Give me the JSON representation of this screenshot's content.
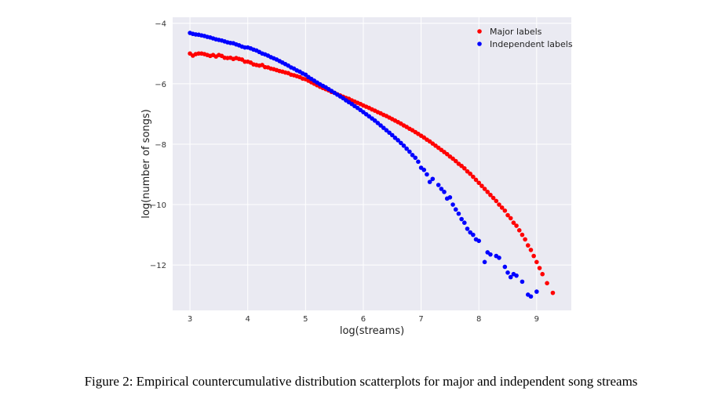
{
  "caption": "Figure 2: Empirical countercumulative distribution scatterplots for major and independent song streams",
  "chart_data": {
    "type": "scatter",
    "xlabel": "log(streams)",
    "ylabel": "log(number of songs)",
    "xlim": [
      2.7,
      9.6
    ],
    "ylim": [
      -13.5,
      -3.8
    ],
    "xticks": [
      3,
      4,
      5,
      6,
      7,
      8,
      9
    ],
    "yticks": [
      -4,
      -6,
      -8,
      -10,
      -12
    ],
    "grid": true,
    "legend_position": "top-right",
    "background": "#eaeaf2",
    "series": [
      {
        "name": "Major labels",
        "color": "#ff0000",
        "points": [
          [
            3.0,
            -5.0
          ],
          [
            3.05,
            -5.07
          ],
          [
            3.1,
            -5.02
          ],
          [
            3.15,
            -5.0
          ],
          [
            3.2,
            -5.0
          ],
          [
            3.25,
            -5.02
          ],
          [
            3.3,
            -5.05
          ],
          [
            3.35,
            -5.08
          ],
          [
            3.4,
            -5.05
          ],
          [
            3.45,
            -5.1
          ],
          [
            3.5,
            -5.05
          ],
          [
            3.55,
            -5.08
          ],
          [
            3.6,
            -5.14
          ],
          [
            3.65,
            -5.15
          ],
          [
            3.7,
            -5.14
          ],
          [
            3.75,
            -5.18
          ],
          [
            3.8,
            -5.15
          ],
          [
            3.85,
            -5.18
          ],
          [
            3.9,
            -5.2
          ],
          [
            3.95,
            -5.27
          ],
          [
            4.0,
            -5.27
          ],
          [
            4.05,
            -5.3
          ],
          [
            4.1,
            -5.36
          ],
          [
            4.15,
            -5.38
          ],
          [
            4.2,
            -5.4
          ],
          [
            4.25,
            -5.38
          ],
          [
            4.3,
            -5.45
          ],
          [
            4.35,
            -5.46
          ],
          [
            4.4,
            -5.5
          ],
          [
            4.45,
            -5.52
          ],
          [
            4.5,
            -5.55
          ],
          [
            4.55,
            -5.58
          ],
          [
            4.6,
            -5.6
          ],
          [
            4.65,
            -5.63
          ],
          [
            4.7,
            -5.65
          ],
          [
            4.75,
            -5.7
          ],
          [
            4.8,
            -5.72
          ],
          [
            4.85,
            -5.75
          ],
          [
            4.9,
            -5.78
          ],
          [
            4.95,
            -5.83
          ],
          [
            5.0,
            -5.85
          ],
          [
            5.05,
            -5.9
          ],
          [
            5.1,
            -5.95
          ],
          [
            5.15,
            -6.0
          ],
          [
            5.2,
            -6.05
          ],
          [
            5.25,
            -6.1
          ],
          [
            5.3,
            -6.14
          ],
          [
            5.35,
            -6.18
          ],
          [
            5.4,
            -6.22
          ],
          [
            5.45,
            -6.27
          ],
          [
            5.5,
            -6.3
          ],
          [
            5.55,
            -6.35
          ],
          [
            5.6,
            -6.39
          ],
          [
            5.65,
            -6.43
          ],
          [
            5.7,
            -6.47
          ],
          [
            5.75,
            -6.5
          ],
          [
            5.8,
            -6.55
          ],
          [
            5.85,
            -6.59
          ],
          [
            5.9,
            -6.63
          ],
          [
            5.95,
            -6.67
          ],
          [
            6.0,
            -6.72
          ],
          [
            6.05,
            -6.76
          ],
          [
            6.1,
            -6.8
          ],
          [
            6.15,
            -6.85
          ],
          [
            6.2,
            -6.89
          ],
          [
            6.25,
            -6.94
          ],
          [
            6.3,
            -6.98
          ],
          [
            6.35,
            -7.03
          ],
          [
            6.4,
            -7.07
          ],
          [
            6.45,
            -7.12
          ],
          [
            6.5,
            -7.17
          ],
          [
            6.55,
            -7.22
          ],
          [
            6.6,
            -7.27
          ],
          [
            6.65,
            -7.32
          ],
          [
            6.7,
            -7.38
          ],
          [
            6.75,
            -7.43
          ],
          [
            6.8,
            -7.49
          ],
          [
            6.85,
            -7.54
          ],
          [
            6.9,
            -7.6
          ],
          [
            6.95,
            -7.66
          ],
          [
            7.0,
            -7.72
          ],
          [
            7.05,
            -7.78
          ],
          [
            7.1,
            -7.85
          ],
          [
            7.15,
            -7.91
          ],
          [
            7.2,
            -7.98
          ],
          [
            7.25,
            -8.05
          ],
          [
            7.3,
            -8.12
          ],
          [
            7.35,
            -8.19
          ],
          [
            7.4,
            -8.26
          ],
          [
            7.45,
            -8.33
          ],
          [
            7.5,
            -8.41
          ],
          [
            7.55,
            -8.48
          ],
          [
            7.6,
            -8.56
          ],
          [
            7.65,
            -8.65
          ],
          [
            7.7,
            -8.72
          ],
          [
            7.75,
            -8.8
          ],
          [
            7.8,
            -8.9
          ],
          [
            7.85,
            -8.98
          ],
          [
            7.9,
            -9.08
          ],
          [
            7.95,
            -9.18
          ],
          [
            8.0,
            -9.28
          ],
          [
            8.05,
            -9.38
          ],
          [
            8.1,
            -9.48
          ],
          [
            8.15,
            -9.58
          ],
          [
            8.2,
            -9.68
          ],
          [
            8.25,
            -9.78
          ],
          [
            8.3,
            -9.88
          ],
          [
            8.35,
            -10.0
          ],
          [
            8.4,
            -10.1
          ],
          [
            8.45,
            -10.2
          ],
          [
            8.5,
            -10.35
          ],
          [
            8.55,
            -10.45
          ],
          [
            8.6,
            -10.6
          ],
          [
            8.65,
            -10.7
          ],
          [
            8.7,
            -10.85
          ],
          [
            8.75,
            -11.0
          ],
          [
            8.8,
            -11.15
          ],
          [
            8.85,
            -11.35
          ],
          [
            8.9,
            -11.5
          ],
          [
            8.95,
            -11.7
          ],
          [
            9.0,
            -11.9
          ],
          [
            9.05,
            -12.1
          ],
          [
            9.1,
            -12.3
          ],
          [
            9.18,
            -12.6
          ],
          [
            9.28,
            -12.92
          ]
        ]
      },
      {
        "name": "Independent labels",
        "color": "#0000ff",
        "points": [
          [
            3.0,
            -4.32
          ],
          [
            3.05,
            -4.35
          ],
          [
            3.1,
            -4.37
          ],
          [
            3.15,
            -4.38
          ],
          [
            3.2,
            -4.4
          ],
          [
            3.25,
            -4.42
          ],
          [
            3.3,
            -4.45
          ],
          [
            3.35,
            -4.47
          ],
          [
            3.4,
            -4.5
          ],
          [
            3.45,
            -4.53
          ],
          [
            3.5,
            -4.55
          ],
          [
            3.55,
            -4.57
          ],
          [
            3.6,
            -4.6
          ],
          [
            3.65,
            -4.63
          ],
          [
            3.7,
            -4.65
          ],
          [
            3.75,
            -4.66
          ],
          [
            3.8,
            -4.7
          ],
          [
            3.85,
            -4.73
          ],
          [
            3.9,
            -4.77
          ],
          [
            3.95,
            -4.8
          ],
          [
            4.0,
            -4.8
          ],
          [
            4.05,
            -4.83
          ],
          [
            4.1,
            -4.87
          ],
          [
            4.15,
            -4.9
          ],
          [
            4.2,
            -4.95
          ],
          [
            4.25,
            -5.0
          ],
          [
            4.3,
            -5.03
          ],
          [
            4.35,
            -5.07
          ],
          [
            4.4,
            -5.12
          ],
          [
            4.45,
            -5.16
          ],
          [
            4.5,
            -5.2
          ],
          [
            4.55,
            -5.25
          ],
          [
            4.6,
            -5.3
          ],
          [
            4.65,
            -5.35
          ],
          [
            4.7,
            -5.4
          ],
          [
            4.75,
            -5.46
          ],
          [
            4.8,
            -5.5
          ],
          [
            4.85,
            -5.56
          ],
          [
            4.9,
            -5.6
          ],
          [
            4.95,
            -5.66
          ],
          [
            5.0,
            -5.7
          ],
          [
            5.05,
            -5.78
          ],
          [
            5.1,
            -5.84
          ],
          [
            5.15,
            -5.9
          ],
          [
            5.2,
            -5.96
          ],
          [
            5.25,
            -6.02
          ],
          [
            5.3,
            -6.07
          ],
          [
            5.35,
            -6.12
          ],
          [
            5.4,
            -6.18
          ],
          [
            5.45,
            -6.24
          ],
          [
            5.5,
            -6.3
          ],
          [
            5.55,
            -6.36
          ],
          [
            5.6,
            -6.42
          ],
          [
            5.65,
            -6.48
          ],
          [
            5.7,
            -6.55
          ],
          [
            5.75,
            -6.61
          ],
          [
            5.8,
            -6.67
          ],
          [
            5.85,
            -6.74
          ],
          [
            5.9,
            -6.8
          ],
          [
            5.95,
            -6.87
          ],
          [
            6.0,
            -6.94
          ],
          [
            6.05,
            -7.01
          ],
          [
            6.1,
            -7.08
          ],
          [
            6.15,
            -7.15
          ],
          [
            6.2,
            -7.22
          ],
          [
            6.25,
            -7.3
          ],
          [
            6.3,
            -7.38
          ],
          [
            6.35,
            -7.46
          ],
          [
            6.4,
            -7.54
          ],
          [
            6.45,
            -7.62
          ],
          [
            6.5,
            -7.7
          ],
          [
            6.55,
            -7.79
          ],
          [
            6.6,
            -7.87
          ],
          [
            6.65,
            -7.96
          ],
          [
            6.7,
            -8.05
          ],
          [
            6.75,
            -8.15
          ],
          [
            6.8,
            -8.25
          ],
          [
            6.85,
            -8.36
          ],
          [
            6.9,
            -8.45
          ],
          [
            6.95,
            -8.58
          ],
          [
            7.0,
            -8.78
          ],
          [
            7.05,
            -8.85
          ],
          [
            7.1,
            -9.0
          ],
          [
            7.15,
            -9.25
          ],
          [
            7.2,
            -9.15
          ],
          [
            7.3,
            -9.35
          ],
          [
            7.35,
            -9.48
          ],
          [
            7.4,
            -9.58
          ],
          [
            7.45,
            -9.8
          ],
          [
            7.5,
            -9.76
          ],
          [
            7.55,
            -10.0
          ],
          [
            7.6,
            -10.16
          ],
          [
            7.65,
            -10.3
          ],
          [
            7.7,
            -10.48
          ],
          [
            7.75,
            -10.6
          ],
          [
            7.8,
            -10.8
          ],
          [
            7.85,
            -10.92
          ],
          [
            7.9,
            -11.0
          ],
          [
            7.95,
            -11.15
          ],
          [
            8.0,
            -11.2
          ],
          [
            8.1,
            -11.9
          ],
          [
            8.15,
            -11.58
          ],
          [
            8.2,
            -11.65
          ],
          [
            8.3,
            -11.7
          ],
          [
            8.35,
            -11.76
          ],
          [
            8.45,
            -12.06
          ],
          [
            8.5,
            -12.25
          ],
          [
            8.55,
            -12.4
          ],
          [
            8.6,
            -12.3
          ],
          [
            8.65,
            -12.35
          ],
          [
            8.75,
            -12.55
          ],
          [
            8.85,
            -12.98
          ],
          [
            8.9,
            -13.04
          ],
          [
            9.0,
            -12.88
          ]
        ]
      }
    ]
  }
}
